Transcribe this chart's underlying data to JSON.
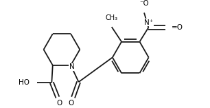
{
  "background": "#ffffff",
  "line_color": "#1a1a1a",
  "line_width": 1.3,
  "font_size": 7.5,
  "figsize": [
    3.06,
    1.57
  ],
  "dpi": 100,
  "xlim": [
    0,
    10
  ],
  "ylim": [
    0,
    5.1
  ]
}
